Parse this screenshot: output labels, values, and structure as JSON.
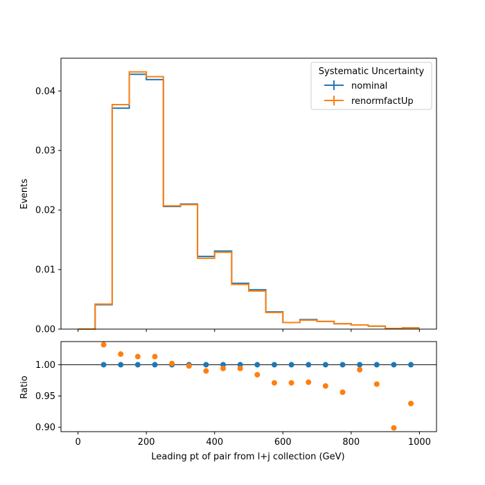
{
  "chart_data": [
    {
      "type": "step",
      "panel": "main",
      "xlabel": "",
      "ylabel": "Events",
      "xlim": [
        -50,
        1050
      ],
      "ylim": [
        0,
        0.0455
      ],
      "y_ticks": [
        0.0,
        0.01,
        0.02,
        0.03,
        0.04
      ],
      "y_tick_labels": [
        "0.00",
        "0.01",
        "0.02",
        "0.03",
        "0.04"
      ],
      "legend": {
        "title": "Systematic Uncertainty",
        "position": "top-right",
        "entries": [
          "nominal",
          "renormfactUp"
        ]
      },
      "bin_edges": [
        0,
        50,
        100,
        150,
        200,
        250,
        300,
        350,
        400,
        450,
        500,
        550,
        600,
        650,
        700,
        750,
        800,
        850,
        900,
        950,
        1000
      ],
      "series": [
        {
          "name": "nominal",
          "color": "#1f77b4",
          "values": [
            0.0,
            0.0041,
            0.0371,
            0.0428,
            0.0419,
            0.0206,
            0.021,
            0.0122,
            0.0131,
            0.0077,
            0.0066,
            0.0029,
            0.0011,
            0.0016,
            0.0013,
            0.0009,
            0.0007,
            0.0005,
            0.0001,
            0.0002
          ]
        },
        {
          "name": "renormfactUp",
          "color": "#ff7f0e",
          "values": [
            0.0,
            0.0042,
            0.0377,
            0.0432,
            0.0424,
            0.0207,
            0.0209,
            0.0119,
            0.0129,
            0.0075,
            0.0064,
            0.0028,
            0.0011,
            0.0015,
            0.0013,
            0.0009,
            0.0007,
            0.0005,
            0.0001,
            0.0002
          ]
        }
      ]
    },
    {
      "type": "scatter",
      "panel": "ratio",
      "xlabel": "Leading pt of pair from l+j collection (GeV)",
      "ylabel": "Ratio",
      "xlim": [
        -50,
        1050
      ],
      "ylim": [
        0.893,
        1.037
      ],
      "x_ticks": [
        0,
        200,
        400,
        600,
        800,
        1000
      ],
      "x_tick_labels": [
        "0",
        "200",
        "400",
        "600",
        "800",
        "1000"
      ],
      "y_ticks": [
        0.9,
        0.95,
        1.0
      ],
      "y_tick_labels": [
        "0.90",
        "0.95",
        "1.00"
      ],
      "reference_line": 1.0,
      "x": [
        75,
        125,
        175,
        225,
        275,
        325,
        375,
        425,
        475,
        525,
        575,
        625,
        675,
        725,
        775,
        825,
        875,
        925,
        975
      ],
      "series": [
        {
          "name": "nominal",
          "color": "#1f77b4",
          "values": [
            1.0,
            1.0,
            1.0,
            1.0,
            1.0,
            1.0,
            1.0,
            1.0,
            1.0,
            1.0,
            1.0,
            1.0,
            1.0,
            1.0,
            1.0,
            1.0,
            1.0,
            1.0,
            1.0
          ]
        },
        {
          "name": "renormfactUp",
          "color": "#ff7f0e",
          "values": [
            1.032,
            1.017,
            1.013,
            1.013,
            1.002,
            0.998,
            0.99,
            0.994,
            0.994,
            0.984,
            0.971,
            0.971,
            0.972,
            0.966,
            0.956,
            0.992,
            0.969,
            0.899,
            0.938
          ]
        }
      ]
    }
  ]
}
